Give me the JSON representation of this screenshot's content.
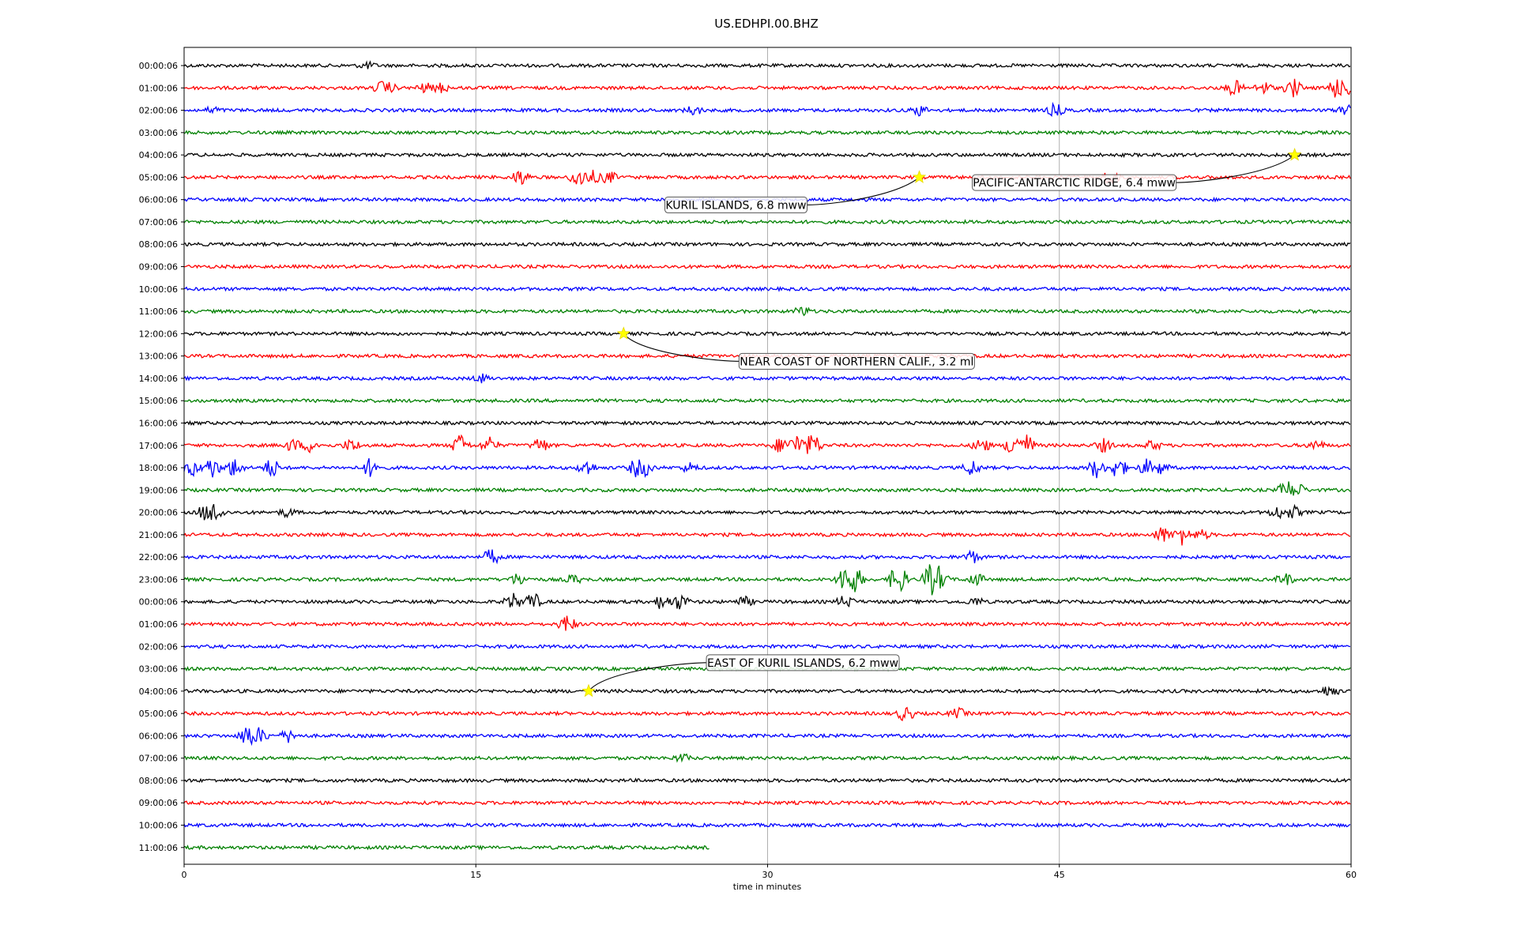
{
  "chart_data": {
    "type": "line",
    "title": "US.EDHPI.00.BHZ",
    "xlabel": "time in minutes",
    "ylabel": "",
    "xlim": [
      0,
      60
    ],
    "xticks": [
      "0",
      "15",
      "30",
      "45",
      "60"
    ],
    "x_tick_values": [
      0,
      15,
      30,
      45,
      60
    ],
    "grid": "vertical lines at each x tick",
    "row_labels": [
      "00:00:06",
      "01:00:06",
      "02:00:06",
      "03:00:06",
      "04:00:06",
      "05:00:06",
      "06:00:06",
      "07:00:06",
      "08:00:06",
      "09:00:06",
      "10:00:06",
      "11:00:06",
      "12:00:06",
      "13:00:06",
      "14:00:06",
      "15:00:06",
      "16:00:06",
      "17:00:06",
      "18:00:06",
      "19:00:06",
      "20:00:06",
      "21:00:06",
      "22:00:06",
      "23:00:06",
      "00:00:06",
      "01:00:06",
      "02:00:06",
      "03:00:06",
      "04:00:06",
      "05:00:06",
      "06:00:06",
      "07:00:06",
      "08:00:06",
      "09:00:06",
      "10:00:06",
      "11:00:06"
    ],
    "trace_colors": [
      "#000000",
      "#ff0000",
      "#0000ff",
      "#008000"
    ],
    "last_trace_end_minute": 27,
    "events": [
      {
        "label": "PACIFIC-ANTARCTIC RIDGE, 6.4 mww",
        "row": 4,
        "minute": 57.1
      },
      {
        "label": "KURIL ISLANDS, 6.8 mww",
        "row": 5,
        "minute": 37.8
      },
      {
        "label": "NEAR COAST OF NORTHERN CALIF., 3.2 ml",
        "row": 12,
        "minute": 22.6
      },
      {
        "label": "EAST OF KURIL ISLANDS, 6.2 mww",
        "row": 28,
        "minute": 20.8
      }
    ],
    "activity": [
      {
        "row": 0,
        "bursts": [
          [
            9.4,
            4
          ]
        ]
      },
      {
        "row": 1,
        "bursts": [
          [
            10.2,
            8
          ],
          [
            10.5,
            6
          ],
          [
            12.4,
            6
          ],
          [
            13.2,
            6
          ],
          [
            54.0,
            10
          ],
          [
            55.5,
            8
          ],
          [
            57.0,
            12
          ],
          [
            59.2,
            14
          ],
          [
            60.0,
            10
          ]
        ]
      },
      {
        "row": 2,
        "bursts": [
          [
            1.5,
            4
          ],
          [
            26.2,
            6
          ],
          [
            37.8,
            6
          ],
          [
            44.8,
            8
          ],
          [
            59.8,
            10
          ]
        ]
      },
      {
        "row": 5,
        "bursts": [
          [
            17.3,
            10
          ],
          [
            20.3,
            14
          ],
          [
            21.0,
            8
          ],
          [
            21.8,
            8
          ],
          [
            47.6,
            10
          ]
        ]
      },
      {
        "row": 11,
        "bursts": [
          [
            31.8,
            6
          ]
        ]
      },
      {
        "row": 14,
        "bursts": [
          [
            15.3,
            5
          ]
        ]
      },
      {
        "row": 17,
        "bursts": [
          [
            5.6,
            8
          ],
          [
            6.5,
            8
          ],
          [
            8.6,
            8
          ],
          [
            14.2,
            14
          ],
          [
            15.7,
            10
          ],
          [
            18.3,
            10
          ],
          [
            30.7,
            10
          ],
          [
            31.5,
            14
          ],
          [
            32.3,
            16
          ],
          [
            41.0,
            10
          ],
          [
            42.7,
            18
          ],
          [
            43.3,
            14
          ],
          [
            47.3,
            8
          ],
          [
            49.8,
            6
          ],
          [
            58.2,
            6
          ]
        ]
      },
      {
        "row": 18,
        "bursts": [
          [
            0.4,
            10
          ],
          [
            1.4,
            14
          ],
          [
            2.6,
            12
          ],
          [
            4.5,
            12
          ],
          [
            9.6,
            12
          ],
          [
            20.7,
            10
          ],
          [
            23.3,
            12
          ],
          [
            23.7,
            10
          ],
          [
            26.0,
            6
          ],
          [
            40.5,
            10
          ],
          [
            46.9,
            12
          ],
          [
            48.0,
            14
          ],
          [
            49.5,
            10
          ],
          [
            50.2,
            8
          ]
        ]
      },
      {
        "row": 19,
        "bursts": [
          [
            56.7,
            12
          ],
          [
            57.2,
            10
          ]
        ]
      },
      {
        "row": 20,
        "bursts": [
          [
            1.1,
            10
          ],
          [
            1.6,
            14
          ],
          [
            5.3,
            5
          ],
          [
            56.2,
            8
          ],
          [
            57.0,
            8
          ]
        ]
      },
      {
        "row": 21,
        "bursts": [
          [
            50.3,
            10
          ],
          [
            51.3,
            12
          ],
          [
            52.3,
            6
          ]
        ]
      },
      {
        "row": 22,
        "bursts": [
          [
            15.8,
            10
          ],
          [
            40.5,
            8
          ]
        ]
      },
      {
        "row": 23,
        "bursts": [
          [
            17.2,
            8
          ],
          [
            20.0,
            6
          ],
          [
            34.0,
            20
          ],
          [
            34.5,
            16
          ],
          [
            36.7,
            22
          ],
          [
            38.4,
            20
          ],
          [
            38.8,
            16
          ],
          [
            40.7,
            8
          ],
          [
            56.6,
            8
          ]
        ]
      },
      {
        "row": 24,
        "bursts": [
          [
            16.9,
            10
          ],
          [
            17.9,
            12
          ],
          [
            24.6,
            10
          ],
          [
            25.5,
            10
          ],
          [
            28.8,
            6
          ],
          [
            34.0,
            8
          ],
          [
            40.7,
            5
          ]
        ]
      },
      {
        "row": 25,
        "bursts": [
          [
            19.7,
            12
          ]
        ]
      },
      {
        "row": 28,
        "bursts": [
          [
            58.9,
            8
          ]
        ]
      },
      {
        "row": 29,
        "bursts": [
          [
            37.1,
            10
          ],
          [
            39.8,
            6
          ]
        ]
      },
      {
        "row": 30,
        "bursts": [
          [
            3.3,
            16
          ],
          [
            3.9,
            10
          ],
          [
            5.4,
            8
          ]
        ]
      },
      {
        "row": 31,
        "bursts": [
          [
            25.6,
            5
          ]
        ]
      }
    ]
  }
}
